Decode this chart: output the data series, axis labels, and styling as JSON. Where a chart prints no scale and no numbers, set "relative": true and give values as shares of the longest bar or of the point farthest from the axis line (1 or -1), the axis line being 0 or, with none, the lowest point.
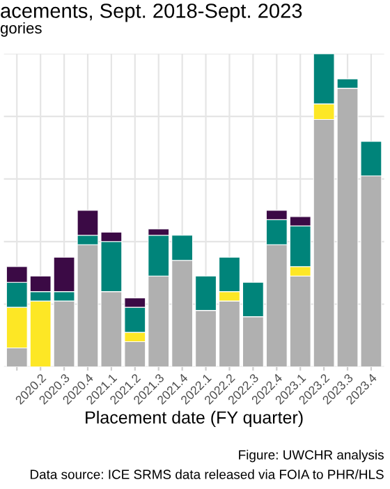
{
  "chart_data": {
    "type": "bar",
    "title": "acements, Sept. 2018-Sept. 2023",
    "subtitle": "gories",
    "xlabel": "Placement date (FY quarter)",
    "categories": [
      null,
      "2020.2",
      "2020.3",
      "2020.4",
      "2021.1",
      "2021.2",
      "2021.3",
      "2021.4",
      "2022.1",
      "2022.2",
      "2022.3",
      "2022.4",
      "2023.1",
      "2023.2",
      "2023.3",
      "2023.4"
    ],
    "stacked": true,
    "relative": true,
    "grid": true,
    "legend": false,
    "series": [
      {
        "color": "#b0b0b0",
        "values": [
          0.06,
          0,
          0.21,
          0.39,
          0.24,
          0.08,
          0.29,
          0.34,
          0.18,
          0.21,
          0.16,
          0.39,
          0.29,
          0.79,
          0.89,
          0.61
        ]
      },
      {
        "color": "#fde725",
        "values": [
          0.13,
          0.21,
          0,
          0,
          0,
          0.03,
          0,
          0,
          0,
          0.03,
          0,
          0,
          0.03,
          0.05,
          0,
          0
        ]
      },
      {
        "color": "#00847a",
        "values": [
          0.08,
          0.03,
          0.03,
          0.03,
          0.16,
          0.08,
          0.13,
          0.08,
          0.11,
          0.11,
          0.11,
          0.08,
          0.13,
          0.16,
          0.03,
          0.11
        ]
      },
      {
        "color": "#3b0a45",
        "values": [
          0.05,
          0.05,
          0.11,
          0.08,
          0.03,
          0.03,
          0.02,
          0,
          0,
          0,
          0,
          0.03,
          0.03,
          0,
          0,
          0
        ]
      }
    ],
    "annotations": [
      "Figure: UWCHR analysis",
      "Data source: ICE SRMS data released via FOIA to PHR/HLS"
    ]
  }
}
